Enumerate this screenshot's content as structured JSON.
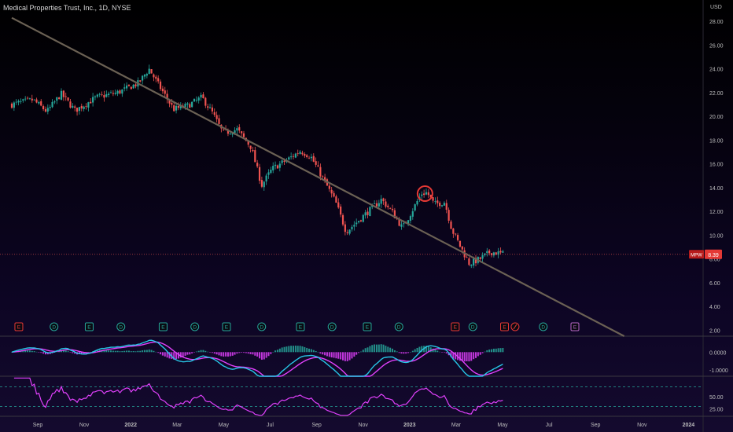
{
  "chart_data": [
    {
      "type": "candlestick",
      "title": "Medical Properties Trust, Inc., 1D, NYSE",
      "currency": "USD",
      "y_ticks": [
        "28.00",
        "26.00",
        "24.00",
        "22.00",
        "20.00",
        "18.00",
        "16.00",
        "14.00",
        "12.00",
        "10.00",
        "8.00",
        "6.00",
        "4.00",
        "2.00"
      ],
      "ylim": [
        1.5,
        29.8
      ],
      "x_ticks": [
        "Sep",
        "Nov",
        "2022",
        "Mar",
        "May",
        "Jul",
        "Sep",
        "Nov",
        "2023",
        "Mar",
        "May",
        "Jul",
        "Sep",
        "Nov",
        "2024"
      ],
      "last_price": {
        "ticker": "MPW",
        "value": "8.39",
        "price": 8.39
      },
      "colors": {
        "up": "#26a69a",
        "down": "#ef5350",
        "trendline": "#6b6154",
        "price_line": "#ef5350",
        "background": "#0d0524"
      },
      "price_path": [
        {
          "t": 0,
          "p": 21.0
        },
        {
          "t": 3,
          "p": 21.4
        },
        {
          "t": 5,
          "p": 20.4
        },
        {
          "t": 7,
          "p": 21.9
        },
        {
          "t": 9,
          "p": 20.5
        },
        {
          "t": 12,
          "p": 21.6
        },
        {
          "t": 15,
          "p": 22.0
        },
        {
          "t": 18,
          "p": 22.8
        },
        {
          "t": 19.5,
          "p": 24.0
        },
        {
          "t": 21,
          "p": 22.5
        },
        {
          "t": 23,
          "p": 20.6
        },
        {
          "t": 25,
          "p": 20.9
        },
        {
          "t": 27,
          "p": 21.6
        },
        {
          "t": 28.5,
          "p": 20.3
        },
        {
          "t": 30,
          "p": 18.6
        },
        {
          "t": 32,
          "p": 18.9
        },
        {
          "t": 34,
          "p": 17.4
        },
        {
          "t": 35.5,
          "p": 14.2
        },
        {
          "t": 37,
          "p": 15.6
        },
        {
          "t": 39,
          "p": 16.3
        },
        {
          "t": 41,
          "p": 17.1
        },
        {
          "t": 42.5,
          "p": 16.6
        },
        {
          "t": 44,
          "p": 15.0
        },
        {
          "t": 46,
          "p": 12.8
        },
        {
          "t": 47.5,
          "p": 10.3
        },
        {
          "t": 49,
          "p": 11.1
        },
        {
          "t": 51,
          "p": 12.2
        },
        {
          "t": 52.5,
          "p": 13.0
        },
        {
          "t": 54,
          "p": 12.0
        },
        {
          "t": 55.5,
          "p": 10.6
        },
        {
          "t": 57,
          "p": 12.2
        },
        {
          "t": 58.2,
          "p": 13.5
        },
        {
          "t": 59,
          "p": 13.6
        },
        {
          "t": 60,
          "p": 12.6
        },
        {
          "t": 61.5,
          "p": 12.8
        },
        {
          "t": 62.5,
          "p": 10.5
        },
        {
          "t": 63.5,
          "p": 9.3
        },
        {
          "t": 65,
          "p": 7.6
        },
        {
          "t": 66.5,
          "p": 8.0
        },
        {
          "t": 68,
          "p": 8.6
        },
        {
          "t": 70,
          "p": 8.4
        }
      ],
      "trendline": {
        "from": {
          "t": 0,
          "p": 28.3
        },
        "to": {
          "t": 87,
          "p": 1.5
        }
      },
      "highlight_circle": {
        "t": 58.7,
        "p": 13.5
      },
      "events": [
        {
          "t": 1,
          "kind": "E",
          "color": "red"
        },
        {
          "t": 6,
          "kind": "D",
          "color": "teal"
        },
        {
          "t": 11,
          "kind": "E",
          "color": "teal"
        },
        {
          "t": 15.5,
          "kind": "D",
          "color": "teal"
        },
        {
          "t": 21.5,
          "kind": "E",
          "color": "teal"
        },
        {
          "t": 26,
          "kind": "D",
          "color": "teal"
        },
        {
          "t": 30.5,
          "kind": "E",
          "color": "teal"
        },
        {
          "t": 35.5,
          "kind": "D",
          "color": "teal"
        },
        {
          "t": 41,
          "kind": "E",
          "color": "teal"
        },
        {
          "t": 45.5,
          "kind": "D",
          "color": "teal"
        },
        {
          "t": 50.5,
          "kind": "E",
          "color": "teal"
        },
        {
          "t": 55,
          "kind": "D",
          "color": "teal"
        },
        {
          "t": 63,
          "kind": "E",
          "color": "red"
        },
        {
          "t": 65.5,
          "kind": "D",
          "color": "teal"
        },
        {
          "t": 70,
          "kind": "E",
          "color": "red"
        },
        {
          "t": 71.5,
          "kind": "split",
          "color": "red"
        },
        {
          "t": 75.5,
          "kind": "D",
          "color": "teal"
        },
        {
          "t": 80,
          "kind": "E",
          "color": "purple"
        }
      ]
    },
    {
      "type": "macd",
      "y_ticks": [
        "0.0000",
        "-1.0000"
      ],
      "ylim": [
        -1.35,
        0.85
      ],
      "colors": {
        "macd": "#27c6e6",
        "signal": "#e040fb",
        "hist_up": "#26a69a",
        "hist_down": "#e040fb"
      }
    },
    {
      "type": "rsi",
      "y_ticks": [
        "50.00",
        "25.00"
      ],
      "ylim": [
        10,
        90
      ],
      "bands": [
        70,
        30
      ],
      "colors": {
        "line": "#e040fb",
        "band": "#26a69a"
      }
    }
  ]
}
